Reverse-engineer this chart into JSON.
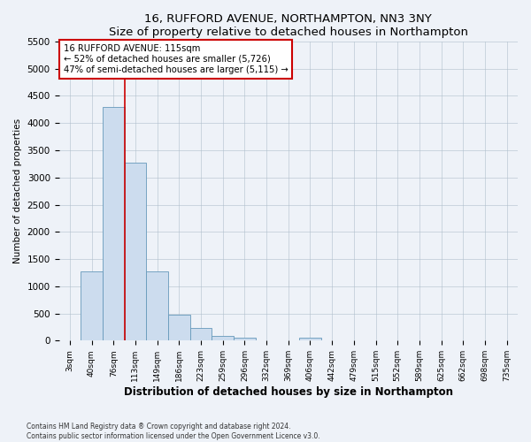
{
  "title": "16, RUFFORD AVENUE, NORTHAMPTON, NN3 3NY",
  "subtitle": "Size of property relative to detached houses in Northampton",
  "xlabel": "Distribution of detached houses by size in Northampton",
  "ylabel": "Number of detached properties",
  "bar_labels": [
    "3sqm",
    "40sqm",
    "76sqm",
    "113sqm",
    "149sqm",
    "186sqm",
    "223sqm",
    "259sqm",
    "296sqm",
    "332sqm",
    "369sqm",
    "406sqm",
    "442sqm",
    "479sqm",
    "515sqm",
    "552sqm",
    "589sqm",
    "625sqm",
    "662sqm",
    "698sqm",
    "735sqm"
  ],
  "bar_values": [
    0,
    1270,
    4300,
    3280,
    1280,
    480,
    235,
    90,
    60,
    0,
    0,
    60,
    0,
    0,
    0,
    0,
    0,
    0,
    0,
    0,
    0
  ],
  "bar_color": "#ccdcee",
  "bar_edge_color": "#6699bb",
  "ylim": [
    0,
    5500
  ],
  "yticks": [
    0,
    500,
    1000,
    1500,
    2000,
    2500,
    3000,
    3500,
    4000,
    4500,
    5000,
    5500
  ],
  "vline_x": 3,
  "property_line_label": "16 RUFFORD AVENUE: 115sqm",
  "annotation_line1": "← 52% of detached houses are smaller (5,726)",
  "annotation_line2": "47% of semi-detached houses are larger (5,115) →",
  "annotation_box_color": "#ffffff",
  "annotation_box_edge_color": "#cc0000",
  "vline_color": "#cc0000",
  "bg_color": "#eef2f8",
  "grid_color": "#b0bfcc",
  "footer_line1": "Contains HM Land Registry data ® Crown copyright and database right 2024.",
  "footer_line2": "Contains public sector information licensed under the Open Government Licence v3.0."
}
